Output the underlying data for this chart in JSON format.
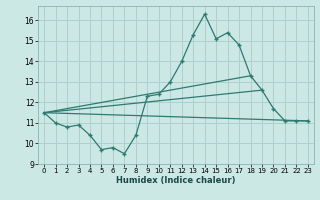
{
  "xlabel": "Humidex (Indice chaleur)",
  "xlim": [
    -0.5,
    23.5
  ],
  "ylim": [
    9,
    16.7
  ],
  "yticks": [
    9,
    10,
    11,
    12,
    13,
    14,
    15,
    16
  ],
  "xticks": [
    0,
    1,
    2,
    3,
    4,
    5,
    6,
    7,
    8,
    9,
    10,
    11,
    12,
    13,
    14,
    15,
    16,
    17,
    18,
    19,
    20,
    21,
    22,
    23
  ],
  "background_color": "#cce8e4",
  "line_color": "#2d7a70",
  "grid_color": "#aecfcb",
  "line1_x": [
    0,
    1,
    2,
    3,
    4,
    5,
    6,
    7,
    8,
    9,
    10,
    11,
    12,
    13,
    14,
    15,
    16,
    17,
    18,
    19,
    20,
    21,
    22,
    23
  ],
  "line1_y": [
    11.5,
    11.0,
    10.8,
    10.9,
    10.4,
    9.7,
    9.8,
    9.5,
    10.4,
    12.3,
    12.4,
    13.0,
    14.0,
    15.3,
    16.3,
    15.1,
    15.4,
    14.8,
    13.3,
    12.6,
    11.7,
    11.1,
    11.1,
    11.1
  ],
  "line2_x": [
    0,
    23
  ],
  "line2_y": [
    11.5,
    11.1
  ],
  "line3_x": [
    0,
    19
  ],
  "line3_y": [
    11.5,
    12.6
  ],
  "line4_x": [
    0,
    18
  ],
  "line4_y": [
    11.5,
    13.3
  ]
}
